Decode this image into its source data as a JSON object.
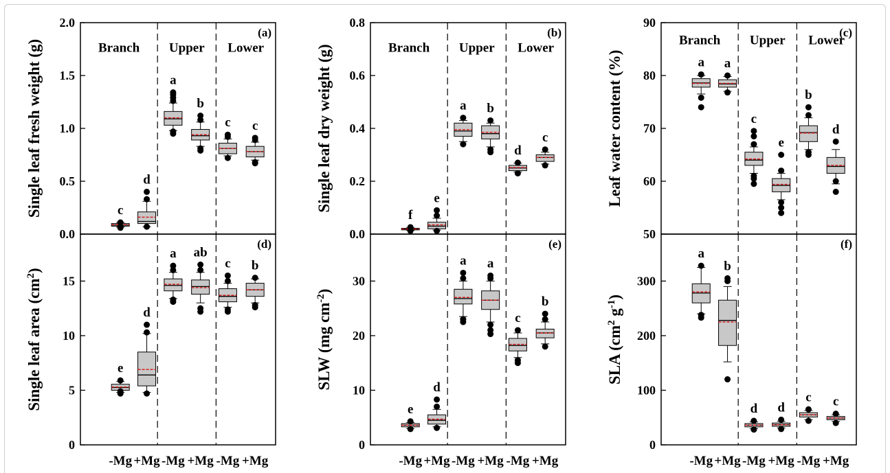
{
  "sections": [
    "Branch",
    "Upper",
    "Lower"
  ],
  "x_categories": [
    "-Mg",
    "+Mg",
    "-Mg",
    "+Mg",
    "-Mg",
    "+Mg"
  ],
  "colors": {
    "box_fill": "#c8c8c8",
    "mean_line": "#d62020",
    "median_line": "#000000",
    "outlier": "#000000"
  },
  "chart_data": [
    {
      "type": "box",
      "panel": "(a)",
      "ylabel": "Single leaf fresh weight (g)",
      "ylim": [
        0,
        2.0
      ],
      "yticks": [
        "0.0",
        "0.5",
        "1.0",
        "1.5",
        "2.0"
      ],
      "ytick_values": [
        0,
        0.5,
        1.0,
        1.5,
        2.0
      ],
      "section_label_value": 1.77,
      "boxes": [
        {
          "category": "Branch -Mg",
          "letter": "c",
          "q1": 0.075,
          "median": 0.085,
          "q3": 0.1,
          "mean": 0.09,
          "whisker_low": 0.065,
          "whisker_high": 0.11,
          "outliers": [
            0.06,
            0.07,
            0.11
          ]
        },
        {
          "category": "Branch +Mg",
          "letter": "d",
          "q1": 0.1,
          "median": 0.12,
          "q3": 0.21,
          "mean": 0.16,
          "whisker_low": 0.07,
          "whisker_high": 0.31,
          "outliers": [
            0.07,
            0.33,
            0.4
          ]
        },
        {
          "category": "Upper -Mg",
          "letter": "a",
          "q1": 1.03,
          "median": 1.09,
          "q3": 1.16,
          "mean": 1.1,
          "whisker_low": 0.98,
          "whisker_high": 1.24,
          "outliers": [
            0.95,
            0.97,
            1.26,
            1.29,
            1.32,
            1.34
          ]
        },
        {
          "category": "Upper +Mg",
          "letter": "b",
          "q1": 0.89,
          "median": 0.93,
          "q3": 0.99,
          "mean": 0.94,
          "whisker_low": 0.83,
          "whisker_high": 1.06,
          "outliers": [
            0.79,
            0.81,
            1.08,
            1.12
          ]
        },
        {
          "category": "Lower -Mg",
          "letter": "c",
          "q1": 0.76,
          "median": 0.81,
          "q3": 0.86,
          "mean": 0.81,
          "whisker_low": 0.74,
          "whisker_high": 0.9,
          "outliers": [
            0.72,
            0.92,
            0.94
          ]
        },
        {
          "category": "Lower +Mg",
          "letter": "c",
          "q1": 0.73,
          "median": 0.78,
          "q3": 0.83,
          "mean": 0.78,
          "whisker_low": 0.7,
          "whisker_high": 0.87,
          "outliers": [
            0.67,
            0.68,
            0.89,
            0.91
          ]
        }
      ]
    },
    {
      "type": "box",
      "panel": "(b)",
      "ylabel": "Single leaf dry weight (g)",
      "ylim": [
        0,
        0.8
      ],
      "yticks": [
        "0.0",
        "0.2",
        "0.4",
        "0.6",
        "0.8"
      ],
      "ytick_values": [
        0,
        0.2,
        0.4,
        0.6,
        0.8
      ],
      "section_label_value": 0.708,
      "boxes": [
        {
          "category": "Branch -Mg",
          "letter": "f",
          "q1": 0.016,
          "median": 0.018,
          "q3": 0.022,
          "mean": 0.019,
          "whisker_low": 0.014,
          "whisker_high": 0.024,
          "outliers": [
            0.012,
            0.026
          ]
        },
        {
          "category": "Branch +Mg",
          "letter": "e",
          "q1": 0.02,
          "median": 0.03,
          "q3": 0.045,
          "mean": 0.035,
          "whisker_low": 0.015,
          "whisker_high": 0.06,
          "outliers": [
            0.012,
            0.07,
            0.09
          ]
        },
        {
          "category": "Upper -Mg",
          "letter": "a",
          "q1": 0.37,
          "median": 0.39,
          "q3": 0.42,
          "mean": 0.395,
          "whisker_low": 0.35,
          "whisker_high": 0.43,
          "outliers": [
            0.34,
            0.44
          ]
        },
        {
          "category": "Upper +Mg",
          "letter": "b",
          "q1": 0.36,
          "median": 0.38,
          "q3": 0.41,
          "mean": 0.385,
          "whisker_low": 0.33,
          "whisker_high": 0.42,
          "outliers": [
            0.31,
            0.32,
            0.43
          ]
        },
        {
          "category": "Lower -Mg",
          "letter": "d",
          "q1": 0.24,
          "median": 0.25,
          "q3": 0.26,
          "mean": 0.252,
          "whisker_low": 0.235,
          "whisker_high": 0.268,
          "outliers": [
            0.23,
            0.27
          ]
        },
        {
          "category": "Lower +Mg",
          "letter": "c",
          "q1": 0.275,
          "median": 0.29,
          "q3": 0.3,
          "mean": 0.29,
          "whisker_low": 0.265,
          "whisker_high": 0.31,
          "outliers": [
            0.26,
            0.32
          ]
        }
      ]
    },
    {
      "type": "box",
      "panel": "(c)",
      "ylabel": "Leaf water content (%)",
      "ylim": [
        50,
        90
      ],
      "yticks": [
        "50",
        "60",
        "70",
        "80",
        "90"
      ],
      "ytick_values": [
        50,
        60,
        70,
        80,
        90
      ],
      "section_label_value": 86.8,
      "boxes": [
        {
          "category": "Branch -Mg",
          "letter": "a",
          "q1": 77.8,
          "median": 78.6,
          "q3": 79.4,
          "mean": 78.5,
          "whisker_low": 76.5,
          "whisker_high": 80.0,
          "outliers": [
            74.0,
            75.8,
            80.2
          ]
        },
        {
          "category": "Branch +Mg",
          "letter": "a",
          "q1": 77.8,
          "median": 78.4,
          "q3": 79.2,
          "mean": 78.5,
          "whisker_low": 77.0,
          "whisker_high": 79.8,
          "outliers": [
            76.8,
            80.0
          ]
        },
        {
          "category": "Upper -Mg",
          "letter": "c",
          "q1": 63.0,
          "median": 64.0,
          "q3": 65.5,
          "mean": 64.2,
          "whisker_low": 61.5,
          "whisker_high": 66.5,
          "outliers": [
            59.5,
            60.5,
            61.0,
            67.0,
            68.5,
            69.5
          ]
        },
        {
          "category": "Upper +Mg",
          "letter": "e",
          "q1": 58.0,
          "median": 59.2,
          "q3": 60.5,
          "mean": 59.4,
          "whisker_low": 56.5,
          "whisker_high": 61.5,
          "outliers": [
            54.0,
            55.0,
            56.0,
            62.0,
            65.0
          ]
        },
        {
          "category": "Lower -Mg",
          "letter": "b",
          "q1": 67.5,
          "median": 69.2,
          "q3": 70.5,
          "mean": 69.1,
          "whisker_low": 66.0,
          "whisker_high": 72.0,
          "outliers": [
            65.0,
            65.5,
            72.5,
            74.0
          ]
        },
        {
          "category": "Lower +Mg",
          "letter": "d",
          "q1": 61.5,
          "median": 62.8,
          "q3": 64.5,
          "mean": 63.0,
          "whisker_low": 59.5,
          "whisker_high": 66.0,
          "outliers": [
            58.0,
            60.0,
            67.5
          ]
        }
      ]
    },
    {
      "type": "box",
      "panel": "(d)",
      "ylabel": "Single leaf area (cm²)",
      "ylabel_main": "Single leaf area (cm",
      "ylabel_sup": "2",
      "ylabel_end": ")",
      "ylim": [
        0,
        19.3
      ],
      "yticks": [
        "0",
        "5",
        "10",
        "15"
      ],
      "ytick_values": [
        0,
        5,
        10,
        15
      ],
      "boxes": [
        {
          "category": "Branch -Mg",
          "letter": "e",
          "q1": 5.0,
          "median": 5.25,
          "q3": 5.55,
          "mean": 5.3,
          "whisker_low": 4.8,
          "whisker_high": 5.8,
          "outliers": [
            4.7,
            4.9,
            5.9
          ]
        },
        {
          "category": "Branch +Mg",
          "letter": "d",
          "q1": 5.4,
          "median": 6.4,
          "q3": 8.5,
          "mean": 6.9,
          "whisker_low": 4.8,
          "whisker_high": 10.2,
          "outliers": [
            4.7,
            10.3,
            11.0
          ]
        },
        {
          "category": "Upper -Mg",
          "letter": "a",
          "q1": 14.1,
          "median": 14.6,
          "q3": 15.2,
          "mean": 14.7,
          "whisker_low": 13.4,
          "whisker_high": 15.8,
          "outliers": [
            13.1,
            13.3,
            16.0,
            16.4
          ]
        },
        {
          "category": "Upper +Mg",
          "letter": "ab",
          "q1": 13.8,
          "median": 14.5,
          "q3": 15.1,
          "mean": 14.4,
          "whisker_low": 13.0,
          "whisker_high": 15.8,
          "outliers": [
            12.2,
            12.5,
            16.0,
            16.5
          ]
        },
        {
          "category": "Lower -Mg",
          "letter": "c",
          "q1": 13.1,
          "median": 13.6,
          "q3": 14.3,
          "mean": 13.7,
          "whisker_low": 12.6,
          "whisker_high": 14.8,
          "outliers": [
            12.2,
            12.4,
            15.0,
            15.5
          ]
        },
        {
          "category": "Lower +Mg",
          "letter": "b",
          "q1": 13.6,
          "median": 14.2,
          "q3": 14.8,
          "mean": 14.2,
          "whisker_low": 13.0,
          "whisker_high": 15.2,
          "outliers": [
            12.6,
            12.8,
            15.3
          ]
        }
      ]
    },
    {
      "type": "box",
      "panel": "(e)",
      "ylabel": "SLW (mg cm⁻²)",
      "ylabel_main": "SLW (mg cm",
      "ylabel_sup": "-2",
      "ylabel_end": ")",
      "ylim": [
        0,
        38.6
      ],
      "yticks": [
        "0",
        "10",
        "20",
        "30"
      ],
      "ytick_values": [
        0,
        10,
        20,
        30
      ],
      "boxes": [
        {
          "category": "Branch -Mg",
          "letter": "e",
          "q1": 3.3,
          "median": 3.6,
          "q3": 3.9,
          "mean": 3.6,
          "whisker_low": 3.0,
          "whisker_high": 4.1,
          "outliers": [
            2.9,
            4.3
          ]
        },
        {
          "category": "Branch +Mg",
          "letter": "d",
          "q1": 3.8,
          "median": 4.5,
          "q3": 5.5,
          "mean": 4.7,
          "whisker_low": 3.3,
          "whisker_high": 6.5,
          "outliers": [
            3.1,
            7.0,
            8.3
          ]
        },
        {
          "category": "Upper -Mg",
          "letter": "a",
          "q1": 25.8,
          "median": 26.8,
          "q3": 28.5,
          "mean": 27.0,
          "whisker_low": 23.5,
          "whisker_high": 30.0,
          "outliers": [
            22.5,
            23.0,
            30.5,
            31.5
          ]
        },
        {
          "category": "Upper +Mg",
          "letter": "a",
          "q1": 24.8,
          "median": 26.5,
          "q3": 28.2,
          "mean": 26.5,
          "whisker_low": 22.5,
          "whisker_high": 30.0,
          "outliers": [
            20.3,
            21.0,
            22.0,
            30.5,
            31.0
          ]
        },
        {
          "category": "Lower -Mg",
          "letter": "c",
          "q1": 17.2,
          "median": 18.2,
          "q3": 19.5,
          "mean": 18.4,
          "whisker_low": 16.0,
          "whisker_high": 20.5,
          "outliers": [
            15.0,
            15.5,
            21.0
          ]
        },
        {
          "category": "Lower +Mg",
          "letter": "b",
          "q1": 19.6,
          "median": 20.5,
          "q3": 21.2,
          "mean": 20.5,
          "whisker_low": 18.5,
          "whisker_high": 22.5,
          "outliers": [
            18.0,
            23.0,
            24.0
          ]
        }
      ]
    },
    {
      "type": "box",
      "panel": "(f)",
      "ylabel": "SLA (cm² g⁻¹)",
      "ylabel_main": "SLA (cm",
      "ylabel_sup": "2",
      "ylabel_mid": " g",
      "ylabel_sup2": "-1",
      "ylabel_end": ")",
      "ylim": [
        0,
        386
      ],
      "yticks": [
        "0",
        "100",
        "200",
        "300"
      ],
      "ytick_values": [
        0,
        100,
        200,
        300
      ],
      "boxes": [
        {
          "category": "Branch -Mg",
          "letter": "a",
          "q1": 260,
          "median": 278,
          "q3": 295,
          "mean": 280,
          "whisker_low": 240,
          "whisker_high": 325,
          "outliers": [
            233,
            238,
            328
          ]
        },
        {
          "category": "Branch +Mg",
          "letter": "b",
          "q1": 182,
          "median": 228,
          "q3": 265,
          "mean": 225,
          "whisker_low": 152,
          "whisker_high": 290,
          "outliers": [
            120,
            300,
            305
          ]
        },
        {
          "category": "Upper -Mg",
          "letter": "d",
          "q1": 33,
          "median": 36,
          "q3": 39,
          "mean": 36,
          "whisker_low": 30,
          "whisker_high": 42,
          "outliers": [
            28,
            44
          ]
        },
        {
          "category": "Upper +Mg",
          "letter": "d",
          "q1": 34,
          "median": 37,
          "q3": 40,
          "mean": 37,
          "whisker_low": 31,
          "whisker_high": 43,
          "outliers": [
            29,
            46
          ]
        },
        {
          "category": "Lower -Mg",
          "letter": "c",
          "q1": 51,
          "median": 55,
          "q3": 59,
          "mean": 55,
          "whisker_low": 46,
          "whisker_high": 63,
          "outliers": [
            44,
            65
          ]
        },
        {
          "category": "Lower +Mg",
          "letter": "c",
          "q1": 46,
          "median": 49,
          "q3": 52,
          "mean": 49,
          "whisker_low": 43,
          "whisker_high": 55,
          "outliers": [
            40,
            57
          ]
        }
      ]
    }
  ]
}
